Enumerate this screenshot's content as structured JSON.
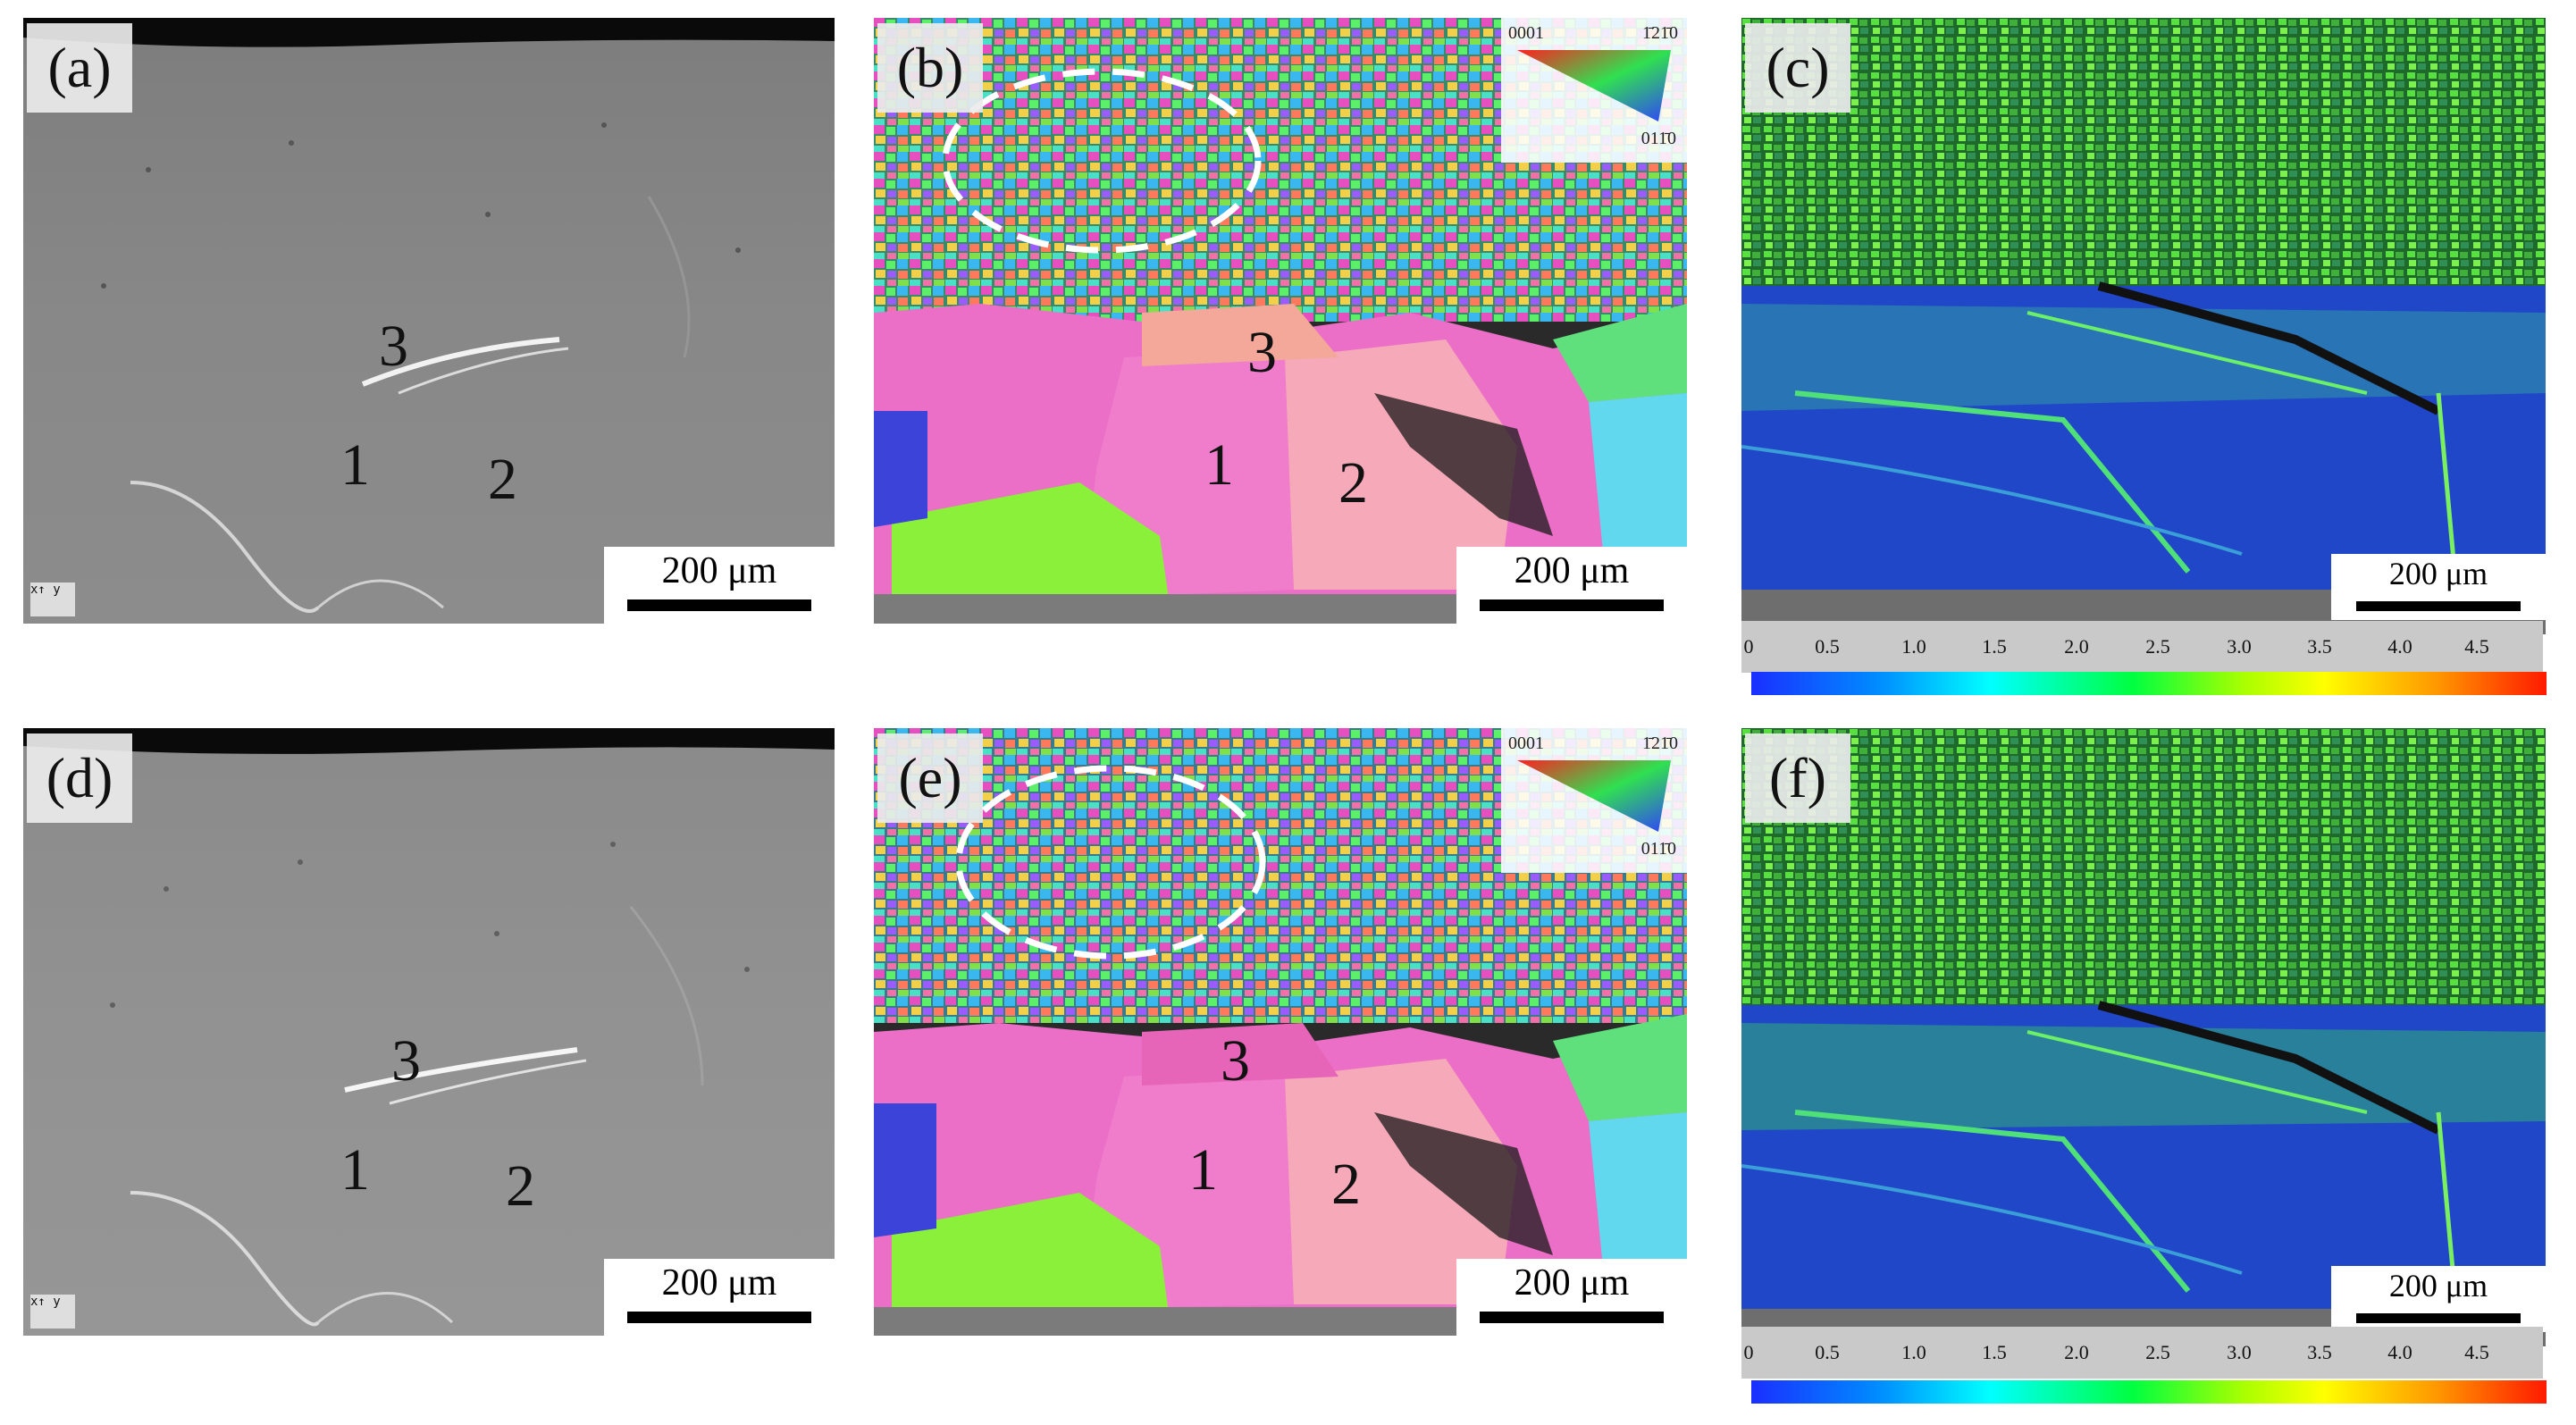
{
  "panels": {
    "a": {
      "label": "(a)",
      "n1": "1",
      "n2": "2",
      "n3": "3",
      "scale": "200 μm"
    },
    "b": {
      "label": "(b)",
      "n1": "1",
      "n2": "2",
      "n3": "3",
      "scale": "200 μm"
    },
    "c": {
      "label": "(c)",
      "scale": "200 μm"
    },
    "d": {
      "label": "(d)",
      "n1": "1",
      "n2": "2",
      "n3": "3",
      "scale": "200 μm"
    },
    "e": {
      "label": "(e)",
      "n1": "1",
      "n2": "2",
      "n3": "3",
      "scale": "200 μm"
    },
    "f": {
      "label": "(f)",
      "scale": "200 μm"
    }
  },
  "ipf_legend": {
    "top_left": "0001",
    "top_right": "1̄21̄0",
    "bottom": "011̄0"
  },
  "axis_icon": {
    "text": "x↑ y"
  },
  "colorbar": {
    "ticks": [
      "0",
      "0.5",
      "1.0",
      "1.5",
      "2.0",
      "2.5",
      "3.0",
      "3.5",
      "4.0",
      "4.5"
    ]
  }
}
